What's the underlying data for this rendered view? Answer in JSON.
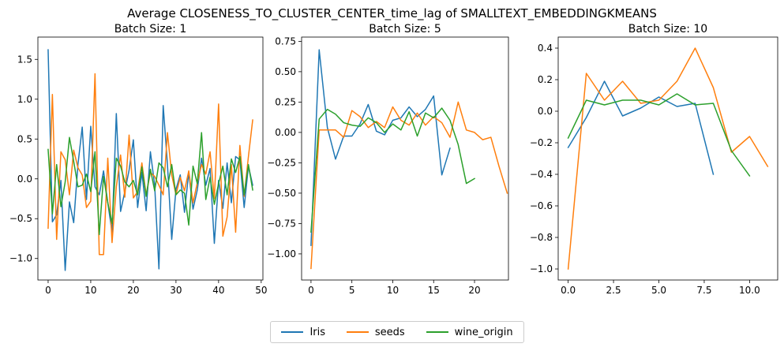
{
  "figure": {
    "suptitle": "Average CLOSENESS_TO_CLUSTER_CENTER_time_lag of SMALLTEXT_EMBEDDINGKMEANS"
  },
  "legend": {
    "entries": [
      {
        "name": "Iris",
        "color": "#1f77b4"
      },
      {
        "name": "seeds",
        "color": "#ff7f0e"
      },
      {
        "name": "wine_origin",
        "color": "#2ca02c"
      }
    ],
    "placement": "bottom-center"
  },
  "chart_data": [
    {
      "type": "line",
      "title": "Batch Size: 1",
      "xlabel": "",
      "ylabel": "",
      "xlim": [
        -2.4,
        50.4
      ],
      "ylim": [
        -1.27,
        1.78
      ],
      "xticks": [
        0,
        10,
        20,
        30,
        40,
        50
      ],
      "xtick_labels": [
        "0",
        "10",
        "20",
        "30",
        "40",
        "50"
      ],
      "yticks": [
        -1.0,
        -0.5,
        0.0,
        0.5,
        1.0,
        1.5
      ],
      "ytick_labels": [
        "−1.0",
        "−0.5",
        "0.0",
        "0.5",
        "1.0",
        "1.5"
      ],
      "series": [
        {
          "name": "Iris",
          "color": "#1f77b4",
          "x_start": 0,
          "values": [
            1.62,
            -0.54,
            -0.45,
            -0.02,
            -1.15,
            -0.29,
            -0.55,
            0.18,
            0.65,
            -0.26,
            0.66,
            -0.1,
            -0.2,
            0.1,
            -0.3,
            -0.67,
            0.82,
            -0.41,
            -0.16,
            0.11,
            0.49,
            -0.36,
            0.08,
            -0.4,
            0.34,
            -0.08,
            -1.13,
            0.92,
            0.18,
            -0.76,
            -0.13,
            0.05,
            -0.42,
            0.08,
            -0.38,
            -0.14,
            0.26,
            -0.08,
            0.13,
            -0.81,
            -0.02,
            -0.37,
            0.2,
            -0.3,
            0.28,
            0.24,
            -0.36,
            0.16,
            -0.08
          ]
        },
        {
          "name": "seeds",
          "color": "#ff7f0e",
          "x_start": 0,
          "values": [
            -0.62,
            1.06,
            -0.76,
            0.34,
            0.24,
            -0.2,
            0.36,
            0.14,
            0.05,
            -0.36,
            -0.28,
            1.32,
            -0.95,
            -0.95,
            0.26,
            -0.8,
            -0.1,
            0.3,
            -0.23,
            0.55,
            -0.24,
            -0.16,
            0.2,
            -0.2,
            0.08,
            0.03,
            -0.08,
            -0.2,
            0.58,
            0.05,
            -0.2,
            0.02,
            -0.15,
            0.1,
            -0.3,
            -0.05,
            0.18,
            0.06,
            0.34,
            -0.25,
            0.94,
            -0.72,
            -0.48,
            0.18,
            -0.67,
            0.42,
            -0.22,
            0.28,
            0.74
          ]
        },
        {
          "name": "wine_origin",
          "color": "#2ca02c",
          "x_start": 0,
          "values": [
            0.37,
            -0.44,
            0.18,
            -0.35,
            -0.04,
            0.52,
            0.22,
            -0.1,
            -0.08,
            0.06,
            -0.16,
            0.34,
            -0.7,
            0.03,
            -0.3,
            -0.56,
            0.26,
            0.16,
            -0.04,
            -0.1,
            -0.02,
            -0.2,
            0.15,
            -0.22,
            0.12,
            -0.15,
            0.2,
            0.14,
            -0.1,
            0.18,
            -0.2,
            -0.14,
            -0.18,
            -0.58,
            0.16,
            -0.06,
            0.58,
            -0.26,
            0.02,
            -0.32,
            -0.06,
            0.16,
            -0.2,
            0.25,
            0.08,
            0.28,
            -0.2,
            0.18,
            -0.14
          ]
        }
      ]
    },
    {
      "type": "line",
      "title": "Batch Size: 5",
      "xlabel": "",
      "ylabel": "",
      "xlim": [
        -1.15,
        24.15
      ],
      "ylim": [
        -1.215,
        0.785
      ],
      "xticks": [
        0,
        5,
        10,
        15,
        20
      ],
      "xtick_labels": [
        "0",
        "5",
        "10",
        "15",
        "20"
      ],
      "yticks": [
        -1.0,
        -0.75,
        -0.5,
        -0.25,
        0.0,
        0.25,
        0.5,
        0.75
      ],
      "ytick_labels": [
        "−1.00",
        "−0.75",
        "−0.50",
        "−0.25",
        "0.00",
        "0.25",
        "0.50",
        "0.75"
      ],
      "series": [
        {
          "name": "Iris",
          "color": "#1f77b4",
          "x_start": 0,
          "values": [
            -0.93,
            0.68,
            0.04,
            -0.22,
            -0.03,
            -0.03,
            0.07,
            0.23,
            0.01,
            -0.02,
            0.1,
            0.12,
            0.21,
            0.13,
            0.19,
            0.3,
            -0.35,
            -0.13
          ]
        },
        {
          "name": "seeds",
          "color": "#ff7f0e",
          "x_start": 0,
          "values": [
            -1.12,
            0.02,
            0.02,
            0.02,
            -0.04,
            0.18,
            0.13,
            0.04,
            0.09,
            0.04,
            0.21,
            0.1,
            0.06,
            0.16,
            0.06,
            0.13,
            0.08,
            -0.04,
            0.25,
            0.02,
            0.0,
            -0.06,
            -0.04,
            -0.28,
            -0.5
          ]
        },
        {
          "name": "wine_origin",
          "color": "#2ca02c",
          "x_start": 0,
          "values": [
            -0.82,
            0.11,
            0.19,
            0.15,
            0.08,
            0.06,
            0.05,
            0.12,
            0.08,
            0.0,
            0.07,
            0.02,
            0.17,
            -0.03,
            0.16,
            0.12,
            0.2,
            0.1,
            -0.1,
            -0.42,
            -0.38
          ]
        }
      ]
    },
    {
      "type": "line",
      "title": "Batch Size: 10",
      "xlabel": "",
      "ylabel": "",
      "xlim": [
        -0.55,
        11.55
      ],
      "ylim": [
        -1.07,
        0.47
      ],
      "xticks": [
        0,
        2.5,
        5,
        7.5,
        10
      ],
      "xtick_labels": [
        "0.0",
        "2.5",
        "5.0",
        "7.5",
        "10.0"
      ],
      "yticks": [
        -1.0,
        -0.8,
        -0.6,
        -0.4,
        -0.2,
        0.0,
        0.2,
        0.4
      ],
      "ytick_labels": [
        "−1.0",
        "−0.8",
        "−0.6",
        "−0.4",
        "−0.2",
        "0.0",
        "0.2",
        "0.4"
      ],
      "series": [
        {
          "name": "Iris",
          "color": "#1f77b4",
          "x_start": 0,
          "values": [
            -0.23,
            -0.04,
            0.19,
            -0.03,
            0.02,
            0.09,
            0.03,
            0.05,
            -0.4
          ]
        },
        {
          "name": "seeds",
          "color": "#ff7f0e",
          "x_start": 0,
          "values": [
            -1.0,
            0.24,
            0.07,
            0.19,
            0.05,
            0.07,
            0.19,
            0.4,
            0.15,
            -0.26,
            -0.16,
            -0.35
          ]
        },
        {
          "name": "wine_origin",
          "color": "#2ca02c",
          "x_start": 0,
          "values": [
            -0.17,
            0.07,
            0.04,
            0.07,
            0.07,
            0.04,
            0.11,
            0.04,
            0.05,
            -0.25,
            -0.41
          ]
        }
      ]
    }
  ]
}
